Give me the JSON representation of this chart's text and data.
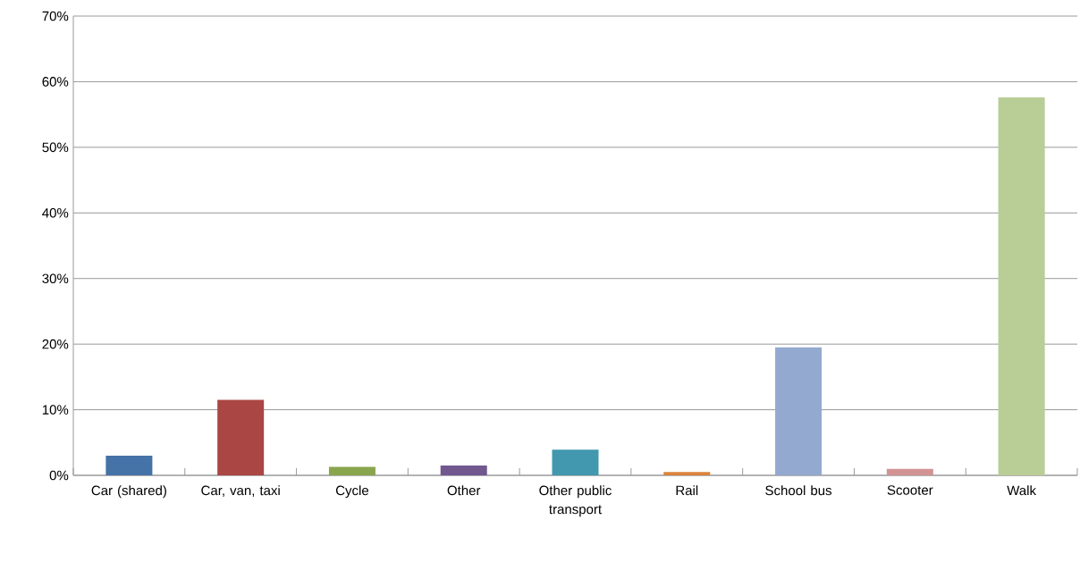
{
  "chart_data": {
    "type": "bar",
    "categories": [
      "Car (shared)",
      "Car, van, taxi",
      "Cycle",
      "Other",
      "Other public transport",
      "Rail",
      "School bus",
      "Scooter",
      "Walk"
    ],
    "values": [
      3.0,
      11.5,
      1.3,
      1.5,
      3.9,
      0.5,
      19.5,
      1.0,
      57.6
    ],
    "colors": [
      "#4572a7",
      "#aa4643",
      "#89a54e",
      "#71588f",
      "#4198af",
      "#db843d",
      "#93a9cf",
      "#d19392",
      "#b9cd96"
    ],
    "ylim": [
      0,
      70
    ],
    "yticks": [
      {
        "value": 0,
        "label": "0%"
      },
      {
        "value": 10,
        "label": "10%"
      },
      {
        "value": 20,
        "label": "20%"
      },
      {
        "value": 30,
        "label": "30%"
      },
      {
        "value": 40,
        "label": "40%"
      },
      {
        "value": 50,
        "label": "50%"
      },
      {
        "value": 60,
        "label": "60%"
      },
      {
        "value": 70,
        "label": "70%"
      }
    ],
    "grid": "y"
  }
}
